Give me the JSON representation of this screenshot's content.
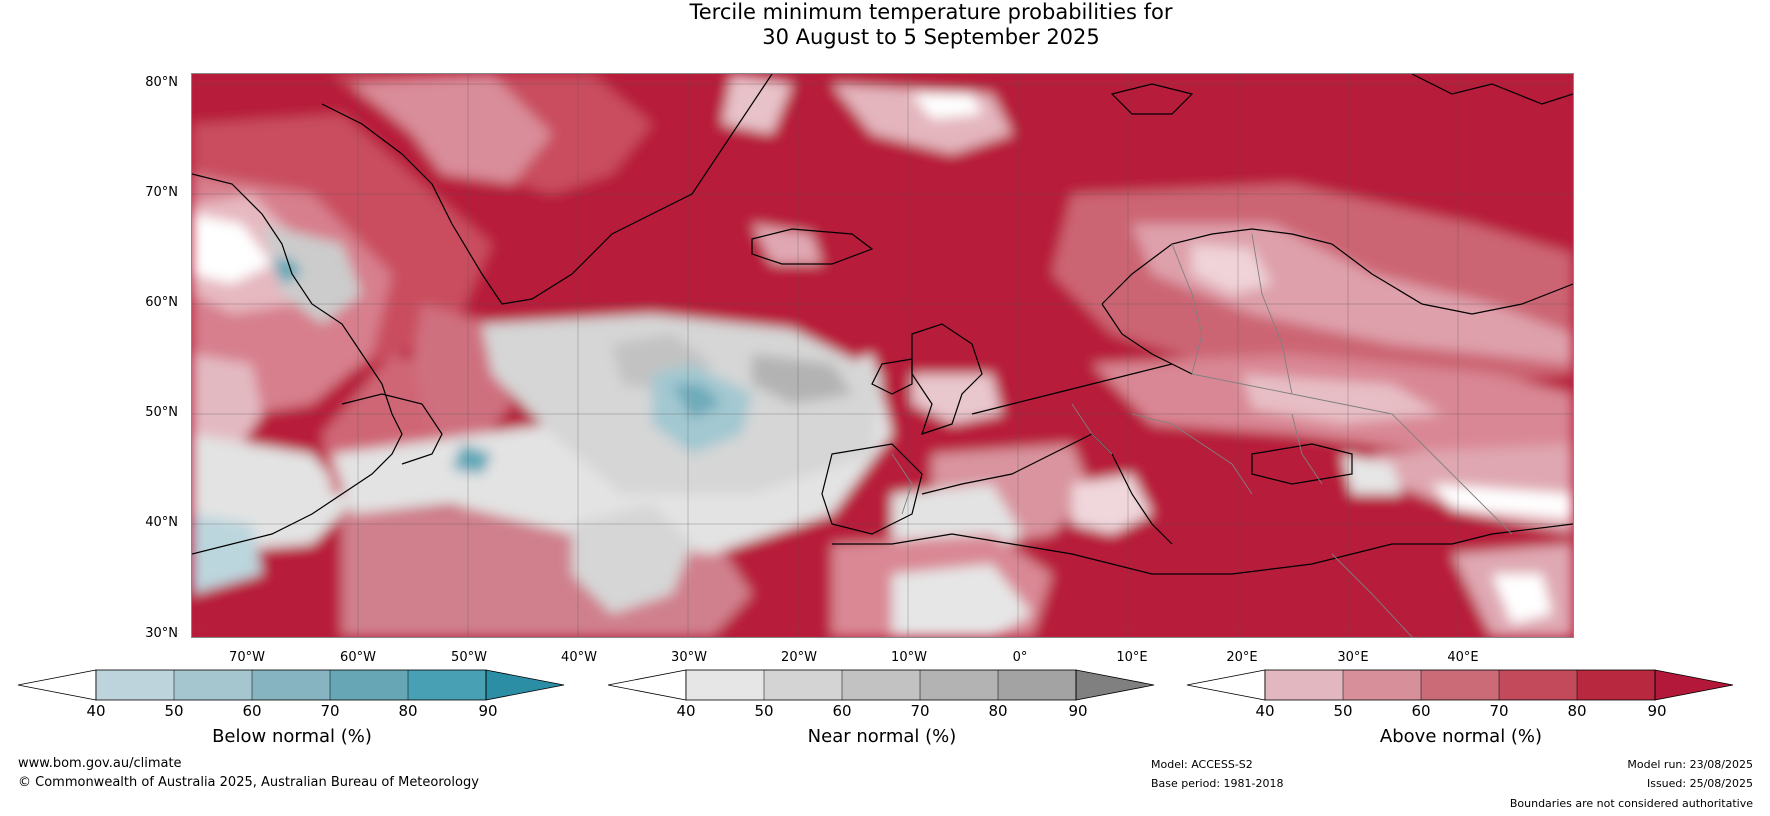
{
  "title": {
    "line1": "Tercile minimum temperature probabilities for",
    "line2": "30 August to 5 September 2025"
  },
  "map": {
    "lat_labels": [
      "80°N",
      "70°N",
      "60°N",
      "50°N",
      "40°N",
      "30°N"
    ],
    "lon_labels": [
      "70°W",
      "60°W",
      "50°W",
      "40°W",
      "30°W",
      "20°W",
      "10°W",
      "0°",
      "10°E",
      "20°E",
      "30°E",
      "40°E"
    ],
    "colors": {
      "ocean_base": "#b71c3a",
      "coast": "#000000",
      "borders": "#808080",
      "grid": "#555555"
    }
  },
  "legends": [
    {
      "title": "Below normal (%)",
      "ticks": [
        "40",
        "50",
        "60",
        "70",
        "80",
        "90"
      ],
      "colors": [
        "#ffffff",
        "#bdd4dc",
        "#a5c6cf",
        "#86b4c0",
        "#67a7b5",
        "#47a0b3",
        "#2b8ea5"
      ]
    },
    {
      "title": "Near normal (%)",
      "ticks": [
        "40",
        "50",
        "60",
        "70",
        "80",
        "90"
      ],
      "colors": [
        "#ffffff",
        "#e6e6e6",
        "#d4d4d4",
        "#c2c2c2",
        "#b3b3b3",
        "#a3a3a3",
        "#808080"
      ]
    },
    {
      "title": "Above normal (%)",
      "ticks": [
        "40",
        "50",
        "60",
        "70",
        "80",
        "90"
      ],
      "colors": [
        "#ffffff",
        "#e2b7bf",
        "#d78f9a",
        "#cb6b78",
        "#c24a5b",
        "#b8283f",
        "#b3173a"
      ]
    }
  ],
  "footer": {
    "website": "www.bom.gov.au/climate",
    "copyright": "© Commonwealth of Australia 2025, Australian Bureau of Meteorology",
    "model": "Model: ACCESS-S2",
    "base_period": "Base period: 1981-2018",
    "model_run": "Model run: 23/08/2025",
    "issued": "Issued: 25/08/2025",
    "disclaimer": "Boundaries are not considered authoritative"
  }
}
